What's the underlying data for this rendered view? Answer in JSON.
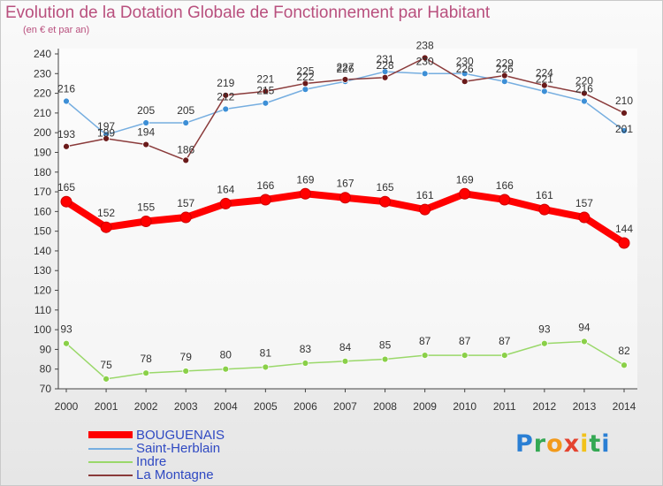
{
  "title": "Evolution de la Dotation Globale de Fonctionnement par Habitant",
  "subtitle": "(en € et par an)",
  "brand": {
    "letters": [
      {
        "ch": "P",
        "color": "#2a7fd4"
      },
      {
        "ch": "r",
        "color": "#34a853"
      },
      {
        "ch": "o",
        "color": "#f29a1a"
      },
      {
        "ch": "x",
        "color": "#e4432f"
      },
      {
        "ch": "i",
        "color": "#f2c21a"
      },
      {
        "ch": "t",
        "color": "#34a853"
      },
      {
        "ch": "i",
        "color": "#2a7fd4"
      }
    ]
  },
  "chart_data": {
    "type": "line",
    "x": [
      "2000",
      "2001",
      "2002",
      "2003",
      "2004",
      "2005",
      "2006",
      "2007",
      "2008",
      "2009",
      "2010",
      "2011",
      "2012",
      "2013",
      "2014"
    ],
    "ylim": [
      70,
      240
    ],
    "yticks": [
      70,
      80,
      90,
      100,
      110,
      120,
      130,
      140,
      150,
      160,
      170,
      180,
      190,
      200,
      210,
      220,
      230,
      240
    ],
    "grid": false,
    "legend_position": "bottom-left",
    "series": [
      {
        "name": "BOUGUENAIS",
        "color": "#ff0000",
        "marker": "#ff0000",
        "width": 8,
        "values": [
          165,
          152,
          155,
          157,
          164,
          166,
          169,
          167,
          165,
          161,
          169,
          166,
          161,
          157,
          144
        ]
      },
      {
        "name": "Saint-Herblain",
        "color": "#76aee0",
        "marker": "#3d8fd6",
        "width": 1.5,
        "values": [
          216,
          199,
          205,
          205,
          212,
          215,
          222,
          226,
          231,
          230,
          230,
          226,
          221,
          216,
          201
        ]
      },
      {
        "name": "Indre",
        "color": "#9ad86a",
        "marker": "#8ad048",
        "width": 1.5,
        "values": [
          93,
          75,
          78,
          79,
          80,
          81,
          83,
          84,
          85,
          87,
          87,
          87,
          93,
          94,
          82
        ]
      },
      {
        "name": "La Montagne",
        "color": "#8a3a3a",
        "marker": "#6a1a1a",
        "width": 1.5,
        "values": [
          193,
          197,
          194,
          186,
          219,
          221,
          225,
          227,
          228,
          238,
          226,
          229,
          224,
          220,
          210
        ]
      }
    ],
    "data_labels": {
      "BOUGUENAIS": [
        "165",
        "152",
        "155",
        "157",
        "164",
        "166",
        "169",
        "167",
        "165",
        "161",
        "169",
        "166",
        "161",
        "157",
        "144"
      ],
      "Saint-Herblain": [
        "216",
        "199",
        "205",
        "205",
        "212",
        "215",
        "222",
        "226",
        "231",
        "230",
        "230",
        "226",
        "221",
        "216",
        "201"
      ],
      "Indre": [
        "93",
        "75",
        "78",
        "79",
        "80",
        "81",
        "83",
        "84",
        "85",
        "87",
        "87",
        "87",
        "93",
        "94",
        "82"
      ],
      "La Montagne": [
        "193",
        "197",
        "194",
        "186",
        "219",
        "221",
        "225",
        "227",
        "228",
        "238",
        "226",
        "229",
        "224",
        "220",
        "210"
      ]
    }
  }
}
